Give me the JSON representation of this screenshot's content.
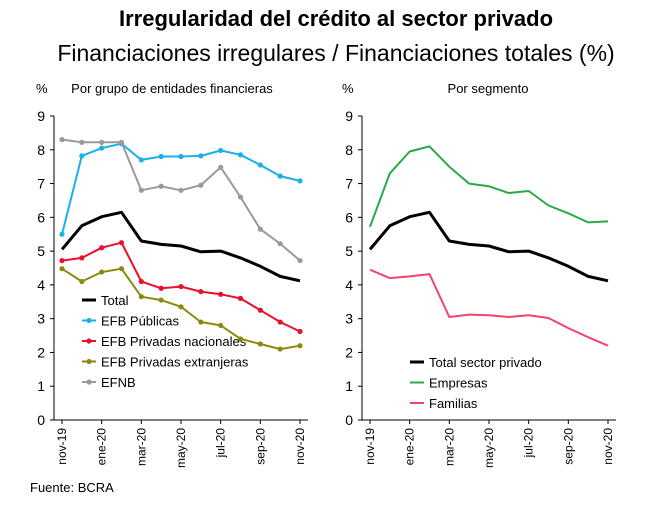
{
  "title": "Irregularidad del crédito al sector privado",
  "subtitle": "Financiaciones irregulares / Financiaciones totales (%)",
  "source": "Fuente: BCRA",
  "chart_data": [
    {
      "type": "line",
      "title": "Por grupo de entidades financieras",
      "ylabel": "%",
      "ylim": [
        0,
        9
      ],
      "yticks": [
        "0",
        "1",
        "2",
        "3",
        "4",
        "5",
        "6",
        "7",
        "8",
        "9"
      ],
      "x_tick_labels": [
        "nov-19",
        "ene-20",
        "mar-20",
        "may-20",
        "jul-20",
        "sep-20",
        "nov-20"
      ],
      "n_points": 13,
      "legend_position": "bottom-left",
      "series": [
        {
          "name": "Total",
          "color": "#000000",
          "marker": "none",
          "values": [
            5.05,
            5.75,
            6.02,
            6.15,
            5.3,
            5.2,
            5.15,
            4.98,
            5.0,
            4.8,
            4.55,
            4.25,
            4.12
          ]
        },
        {
          "name": "EFB Públicas",
          "color": "#1ab0e8",
          "marker": "circle",
          "values": [
            5.5,
            7.82,
            8.05,
            8.18,
            7.7,
            7.8,
            7.8,
            7.82,
            7.98,
            7.85,
            7.55,
            7.22,
            7.08
          ]
        },
        {
          "name": "EFB Privadas nacionales",
          "color": "#e8102a",
          "marker": "circle",
          "values": [
            4.72,
            4.8,
            5.1,
            5.25,
            4.1,
            3.9,
            3.95,
            3.8,
            3.72,
            3.6,
            3.25,
            2.9,
            2.62
          ]
        },
        {
          "name": "EFB Privadas extranjeras",
          "color": "#8a8a12",
          "marker": "circle",
          "values": [
            4.48,
            4.1,
            4.38,
            4.48,
            3.65,
            3.55,
            3.35,
            2.9,
            2.8,
            2.4,
            2.25,
            2.1,
            2.2
          ]
        },
        {
          "name": "EFNB",
          "color": "#9a9a9a",
          "marker": "circle",
          "values": [
            8.3,
            8.22,
            8.22,
            8.22,
            6.8,
            6.92,
            6.8,
            6.95,
            7.48,
            6.6,
            5.65,
            5.22,
            4.72
          ]
        }
      ]
    },
    {
      "type": "line",
      "title": "Por segmento",
      "ylabel": "%",
      "ylim": [
        0,
        9
      ],
      "yticks": [
        "0",
        "1",
        "2",
        "3",
        "4",
        "5",
        "6",
        "7",
        "8",
        "9"
      ],
      "x_tick_labels": [
        "nov-19",
        "ene-20",
        "mar-20",
        "may-20",
        "jul-20",
        "sep-20",
        "nov-20"
      ],
      "n_points": 13,
      "legend_position": "bottom-left",
      "series": [
        {
          "name": "Total sector privado",
          "color": "#000000",
          "marker": "none",
          "values": [
            5.05,
            5.75,
            6.02,
            6.15,
            5.3,
            5.2,
            5.15,
            4.98,
            5.0,
            4.8,
            4.55,
            4.25,
            4.12
          ]
        },
        {
          "name": "Empresas",
          "color": "#2aa84a",
          "marker": "none",
          "values": [
            5.72,
            7.3,
            7.95,
            8.1,
            7.5,
            7.0,
            6.92,
            6.72,
            6.78,
            6.35,
            6.12,
            5.85,
            5.88
          ]
        },
        {
          "name": "Familias",
          "color": "#f0466e",
          "marker": "none",
          "values": [
            4.45,
            4.2,
            4.25,
            4.32,
            3.05,
            3.12,
            3.1,
            3.05,
            3.1,
            3.02,
            2.72,
            2.45,
            2.2
          ]
        }
      ]
    }
  ]
}
